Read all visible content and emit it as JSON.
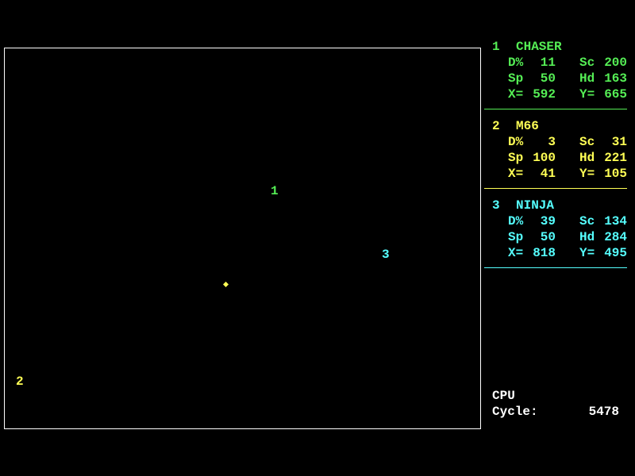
{
  "labels": {
    "damage": "D%",
    "score": "Sc",
    "speed": "Sp",
    "heading": "Hd",
    "x": "X=",
    "y": "Y="
  },
  "robots": [
    {
      "number": "1",
      "name": "CHASER",
      "damage": "11",
      "score": "200",
      "speed": "50",
      "heading": "163",
      "x": "592",
      "y": "665",
      "color": "#55ee55"
    },
    {
      "number": "2",
      "name": "M66",
      "damage": "3",
      "score": "31",
      "speed": "100",
      "heading": "221",
      "x": "41",
      "y": "105",
      "color": "#ffff55"
    },
    {
      "number": "3",
      "name": "NINJA",
      "damage": "39",
      "score": "134",
      "speed": "50",
      "heading": "284",
      "x": "818",
      "y": "495",
      "color": "#55ffff"
    }
  ],
  "cpu": {
    "title": "CPU",
    "cycle_label": "Cycle:",
    "cycle": "5478"
  }
}
